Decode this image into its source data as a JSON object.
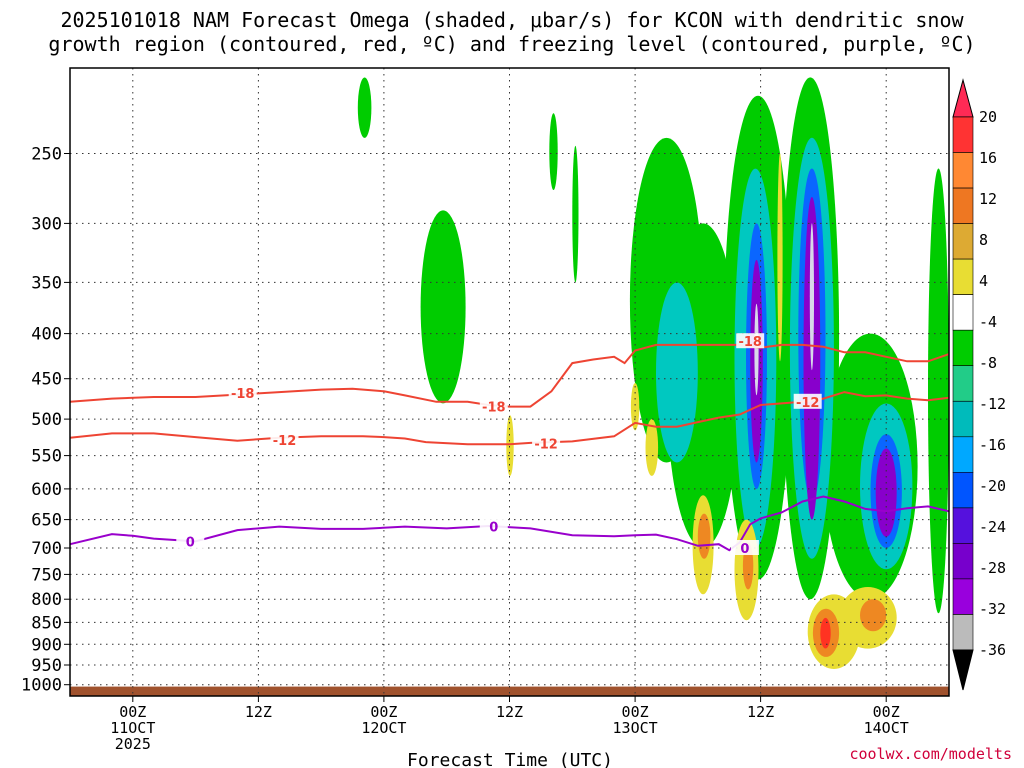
{
  "title_line1": "2025101018 NAM Forecast Omega (shaded, μbar/s) for KCON with dendritic snow",
  "title_line2": "growth region (contoured, red, ºC) and freezing level (contoured, purple, ºC)",
  "credit": "coolwx.com/modelts",
  "colors": {
    "dgz_contour": "#ee4433",
    "freezing_contour": "#9900cc",
    "ground": "#a0522d"
  },
  "chart_data": {
    "type": "heatmap",
    "xlabel": "Forecast Time (UTC)",
    "y_scale": "log-pressure",
    "y_ticks": [
      250,
      300,
      350,
      400,
      450,
      500,
      550,
      600,
      650,
      700,
      750,
      800,
      850,
      900,
      950,
      1000
    ],
    "x_ticks": [
      {
        "h": 6,
        "l1": "00Z",
        "l2": "11OCT",
        "l3": "2025"
      },
      {
        "h": 18,
        "l1": "12Z",
        "l2": "",
        "l3": ""
      },
      {
        "h": 30,
        "l1": "00Z",
        "l2": "12OCT",
        "l3": ""
      },
      {
        "h": 42,
        "l1": "12Z",
        "l2": "",
        "l3": ""
      },
      {
        "h": 54,
        "l1": "00Z",
        "l2": "13OCT",
        "l3": ""
      },
      {
        "h": 66,
        "l1": "12Z",
        "l2": "",
        "l3": ""
      },
      {
        "h": 78,
        "l1": "00Z",
        "l2": "14OCT",
        "l3": ""
      }
    ],
    "x_range_hours": [
      0,
      84
    ],
    "y_range_hPa": [
      200,
      1030
    ],
    "grid": true,
    "colorbar": {
      "labels": [
        "20",
        "16",
        "12",
        "8",
        "4",
        "-4",
        "-8",
        "-12",
        "-16",
        "-20",
        "-24",
        "-28",
        "-32",
        "-36"
      ],
      "colors": [
        "#ff2a55",
        "#ff3333",
        "#ff8833",
        "#ee7722",
        "#ddaa33",
        "#e8dd33",
        "#ffffff",
        "#00cc00",
        "#22cc88",
        "#00bbbb",
        "#00a8ff",
        "#0055ff",
        "#5511dd",
        "#7700cc",
        "#9900dd",
        "#bbbbbb",
        "#000000"
      ]
    },
    "contours": [
      {
        "label": "-18",
        "color": "#ee4433",
        "points": [
          [
            0,
            478
          ],
          [
            4,
            474
          ],
          [
            8,
            472
          ],
          [
            12,
            472
          ],
          [
            16,
            469
          ],
          [
            20,
            466
          ],
          [
            24,
            463
          ],
          [
            27,
            462
          ],
          [
            30,
            465
          ],
          [
            32,
            470
          ],
          [
            35,
            478
          ],
          [
            38,
            478
          ],
          [
            40,
            482
          ],
          [
            42,
            484
          ],
          [
            44,
            484
          ],
          [
            46,
            465
          ],
          [
            48,
            432
          ],
          [
            50,
            428
          ],
          [
            52,
            425
          ],
          [
            53,
            432
          ],
          [
            54,
            418
          ],
          [
            56,
            412
          ],
          [
            60,
            412
          ],
          [
            64,
            412
          ],
          [
            66,
            415
          ],
          [
            68,
            412
          ],
          [
            70,
            412
          ],
          [
            72,
            414
          ],
          [
            74,
            420
          ],
          [
            76,
            420
          ],
          [
            78,
            425
          ],
          [
            80,
            430
          ],
          [
            82,
            430
          ],
          [
            84,
            422
          ]
        ],
        "labels_at": [
          [
            16.5,
            467
          ],
          [
            40.5,
            484
          ],
          [
            65,
            408
          ]
        ]
      },
      {
        "label": "-12",
        "color": "#ee4433",
        "points": [
          [
            0,
            525
          ],
          [
            4,
            519
          ],
          [
            8,
            519
          ],
          [
            12,
            524
          ],
          [
            16,
            529
          ],
          [
            20,
            525
          ],
          [
            24,
            523
          ],
          [
            28,
            523
          ],
          [
            30,
            524
          ],
          [
            32,
            526
          ],
          [
            34,
            531
          ],
          [
            38,
            534
          ],
          [
            42,
            534
          ],
          [
            44,
            532
          ],
          [
            48,
            530
          ],
          [
            52,
            523
          ],
          [
            54,
            505
          ],
          [
            56,
            510
          ],
          [
            58,
            510
          ],
          [
            60,
            504
          ],
          [
            62,
            498
          ],
          [
            64,
            494
          ],
          [
            66,
            482
          ],
          [
            68,
            480
          ],
          [
            70,
            478
          ],
          [
            72,
            474
          ],
          [
            74,
            466
          ],
          [
            76,
            471
          ],
          [
            78,
            470
          ],
          [
            80,
            474
          ],
          [
            82,
            476
          ],
          [
            84,
            473
          ]
        ],
        "labels_at": [
          [
            20.5,
            528
          ],
          [
            45.5,
            533
          ],
          [
            70.5,
            478
          ]
        ]
      },
      {
        "label": "0",
        "color": "#9900cc",
        "points": [
          [
            0,
            693
          ],
          [
            4,
            675
          ],
          [
            6,
            678
          ],
          [
            8,
            683
          ],
          [
            12,
            688
          ],
          [
            16,
            668
          ],
          [
            20,
            662
          ],
          [
            24,
            666
          ],
          [
            28,
            666
          ],
          [
            32,
            662
          ],
          [
            36,
            665
          ],
          [
            40,
            661
          ],
          [
            44,
            665
          ],
          [
            48,
            677
          ],
          [
            50,
            678
          ],
          [
            52,
            679
          ],
          [
            54,
            677
          ],
          [
            56,
            676
          ],
          [
            58,
            684
          ],
          [
            60,
            696
          ],
          [
            62,
            693
          ],
          [
            63,
            704
          ],
          [
            64,
            690
          ],
          [
            65,
            658
          ],
          [
            66,
            648
          ],
          [
            68,
            638
          ],
          [
            70,
            620
          ],
          [
            72,
            612
          ],
          [
            74,
            620
          ],
          [
            76,
            632
          ],
          [
            78,
            636
          ],
          [
            80,
            631
          ],
          [
            82,
            628
          ],
          [
            84,
            636
          ]
        ],
        "labels_at": [
          [
            11.5,
            688
          ],
          [
            40.5,
            662
          ],
          [
            64.5,
            700
          ]
        ]
      }
    ],
    "omega_cells": [
      {
        "v": -4,
        "h": [
          27.5,
          28.8
        ],
        "p": [
          205,
          240
        ]
      },
      {
        "v": -4,
        "h": [
          33.5,
          37.8
        ],
        "p": [
          290,
          480
        ]
      },
      {
        "v": -4,
        "h": [
          45.8,
          46.6
        ],
        "p": [
          225,
          275
        ]
      },
      {
        "v": -4,
        "h": [
          48.0,
          48.6
        ],
        "p": [
          245,
          350
        ]
      },
      {
        "v": -4,
        "h": [
          53.5,
          60.5
        ],
        "p": [
          240,
          560
        ]
      },
      {
        "v": -4,
        "h": [
          57.0,
          64.0
        ],
        "p": [
          300,
          700
        ]
      },
      {
        "v": -4,
        "h": [
          62.5,
          69.0
        ],
        "p": [
          215,
          760
        ]
      },
      {
        "v": -4,
        "h": [
          68.0,
          73.5
        ],
        "p": [
          205,
          800
        ]
      },
      {
        "v": -4,
        "h": [
          72.0,
          81.0
        ],
        "p": [
          400,
          800
        ]
      },
      {
        "v": -4,
        "h": [
          82.0,
          84.0
        ],
        "p": [
          260,
          830
        ]
      },
      {
        "v": -12,
        "h": [
          56.0,
          60.0
        ],
        "p": [
          350,
          560
        ]
      },
      {
        "v": -12,
        "h": [
          63.5,
          67.5
        ],
        "p": [
          260,
          700
        ]
      },
      {
        "v": -12,
        "h": [
          68.8,
          73.0
        ],
        "p": [
          240,
          720
        ]
      },
      {
        "v": -12,
        "h": [
          75.5,
          80.5
        ],
        "p": [
          480,
          740
        ]
      },
      {
        "v": -20,
        "h": [
          64.6,
          66.6
        ],
        "p": [
          300,
          600
        ]
      },
      {
        "v": -20,
        "h": [
          69.6,
          72.2
        ],
        "p": [
          260,
          620
        ]
      },
      {
        "v": -20,
        "h": [
          76.5,
          79.5
        ],
        "p": [
          520,
          700
        ]
      },
      {
        "v": -28,
        "h": [
          65.0,
          66.2
        ],
        "p": [
          330,
          560
        ]
      },
      {
        "v": -28,
        "h": [
          70.1,
          71.7
        ],
        "p": [
          280,
          650
        ]
      },
      {
        "v": -28,
        "h": [
          77.0,
          79.0
        ],
        "p": [
          540,
          680
        ]
      },
      {
        "v": -36,
        "h": [
          65.4,
          65.8
        ],
        "p": [
          370,
          470
        ]
      },
      {
        "v": -36,
        "h": [
          70.7,
          71.1
        ],
        "p": [
          300,
          440
        ]
      },
      {
        "v": 4,
        "h": [
          41.7,
          42.4
        ],
        "p": [
          495,
          580
        ]
      },
      {
        "v": 4,
        "h": [
          53.6,
          54.4
        ],
        "p": [
          455,
          515
        ]
      },
      {
        "v": 4,
        "h": [
          55.0,
          56.2
        ],
        "p": [
          500,
          580
        ]
      },
      {
        "v": 4,
        "h": [
          67.6,
          68.1
        ],
        "p": [
          250,
          430
        ]
      },
      {
        "v": 4,
        "h": [
          59.5,
          61.5
        ],
        "p": [
          610,
          790
        ]
      },
      {
        "v": 4,
        "h": [
          63.5,
          65.8
        ],
        "p": [
          650,
          845
        ]
      },
      {
        "v": 4,
        "h": [
          70.5,
          75.5
        ],
        "p": [
          790,
          960
        ]
      },
      {
        "v": 4,
        "h": [
          73.5,
          79.0
        ],
        "p": [
          775,
          910
        ]
      },
      {
        "v": 12,
        "h": [
          60.0,
          61.2
        ],
        "p": [
          640,
          720
        ]
      },
      {
        "v": 12,
        "h": [
          64.3,
          65.3
        ],
        "p": [
          690,
          780
        ]
      },
      {
        "v": 12,
        "h": [
          71.0,
          73.5
        ],
        "p": [
          820,
          930
        ]
      },
      {
        "v": 12,
        "h": [
          75.5,
          78.0
        ],
        "p": [
          800,
          870
        ]
      },
      {
        "v": 20,
        "h": [
          71.7,
          72.7
        ],
        "p": [
          840,
          910
        ]
      }
    ]
  }
}
